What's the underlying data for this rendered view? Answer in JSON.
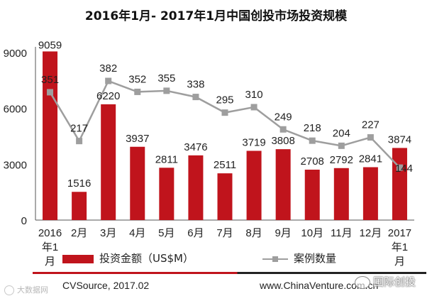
{
  "title": "2016年1月- 2017年1月中国创投市场投资规模",
  "chart_data": {
    "type": "bar",
    "categories": [
      "2016\n年1\n月",
      "2月",
      "3月",
      "4月",
      "5月",
      "6月",
      "7月",
      "8月",
      "9月",
      "10月",
      "11月",
      "12月",
      "2017\n年1\n月"
    ],
    "series": [
      {
        "name": "投资金额（US$M）",
        "type": "bar",
        "color": "#c0141c",
        "values": [
          9059,
          1516,
          6220,
          3937,
          2811,
          3476,
          2511,
          3719,
          3808,
          2708,
          2792,
          2841,
          3874
        ]
      },
      {
        "name": "案例数量",
        "type": "line",
        "color": "#9e9e9e",
        "values": [
          351,
          217,
          382,
          352,
          355,
          338,
          295,
          310,
          249,
          218,
          204,
          227,
          144
        ]
      }
    ],
    "y_ticks": [
      0,
      3000,
      6000,
      9000
    ],
    "ylim": [
      0,
      9000
    ],
    "line_scale_note": "",
    "grid": false,
    "legend_position": "bottom"
  },
  "footer": {
    "source": "CVSource, 2017.02",
    "url": "www.ChinaVenture.com.cn"
  },
  "watermarks": {
    "left": "大数据网",
    "right": "国际创投"
  }
}
